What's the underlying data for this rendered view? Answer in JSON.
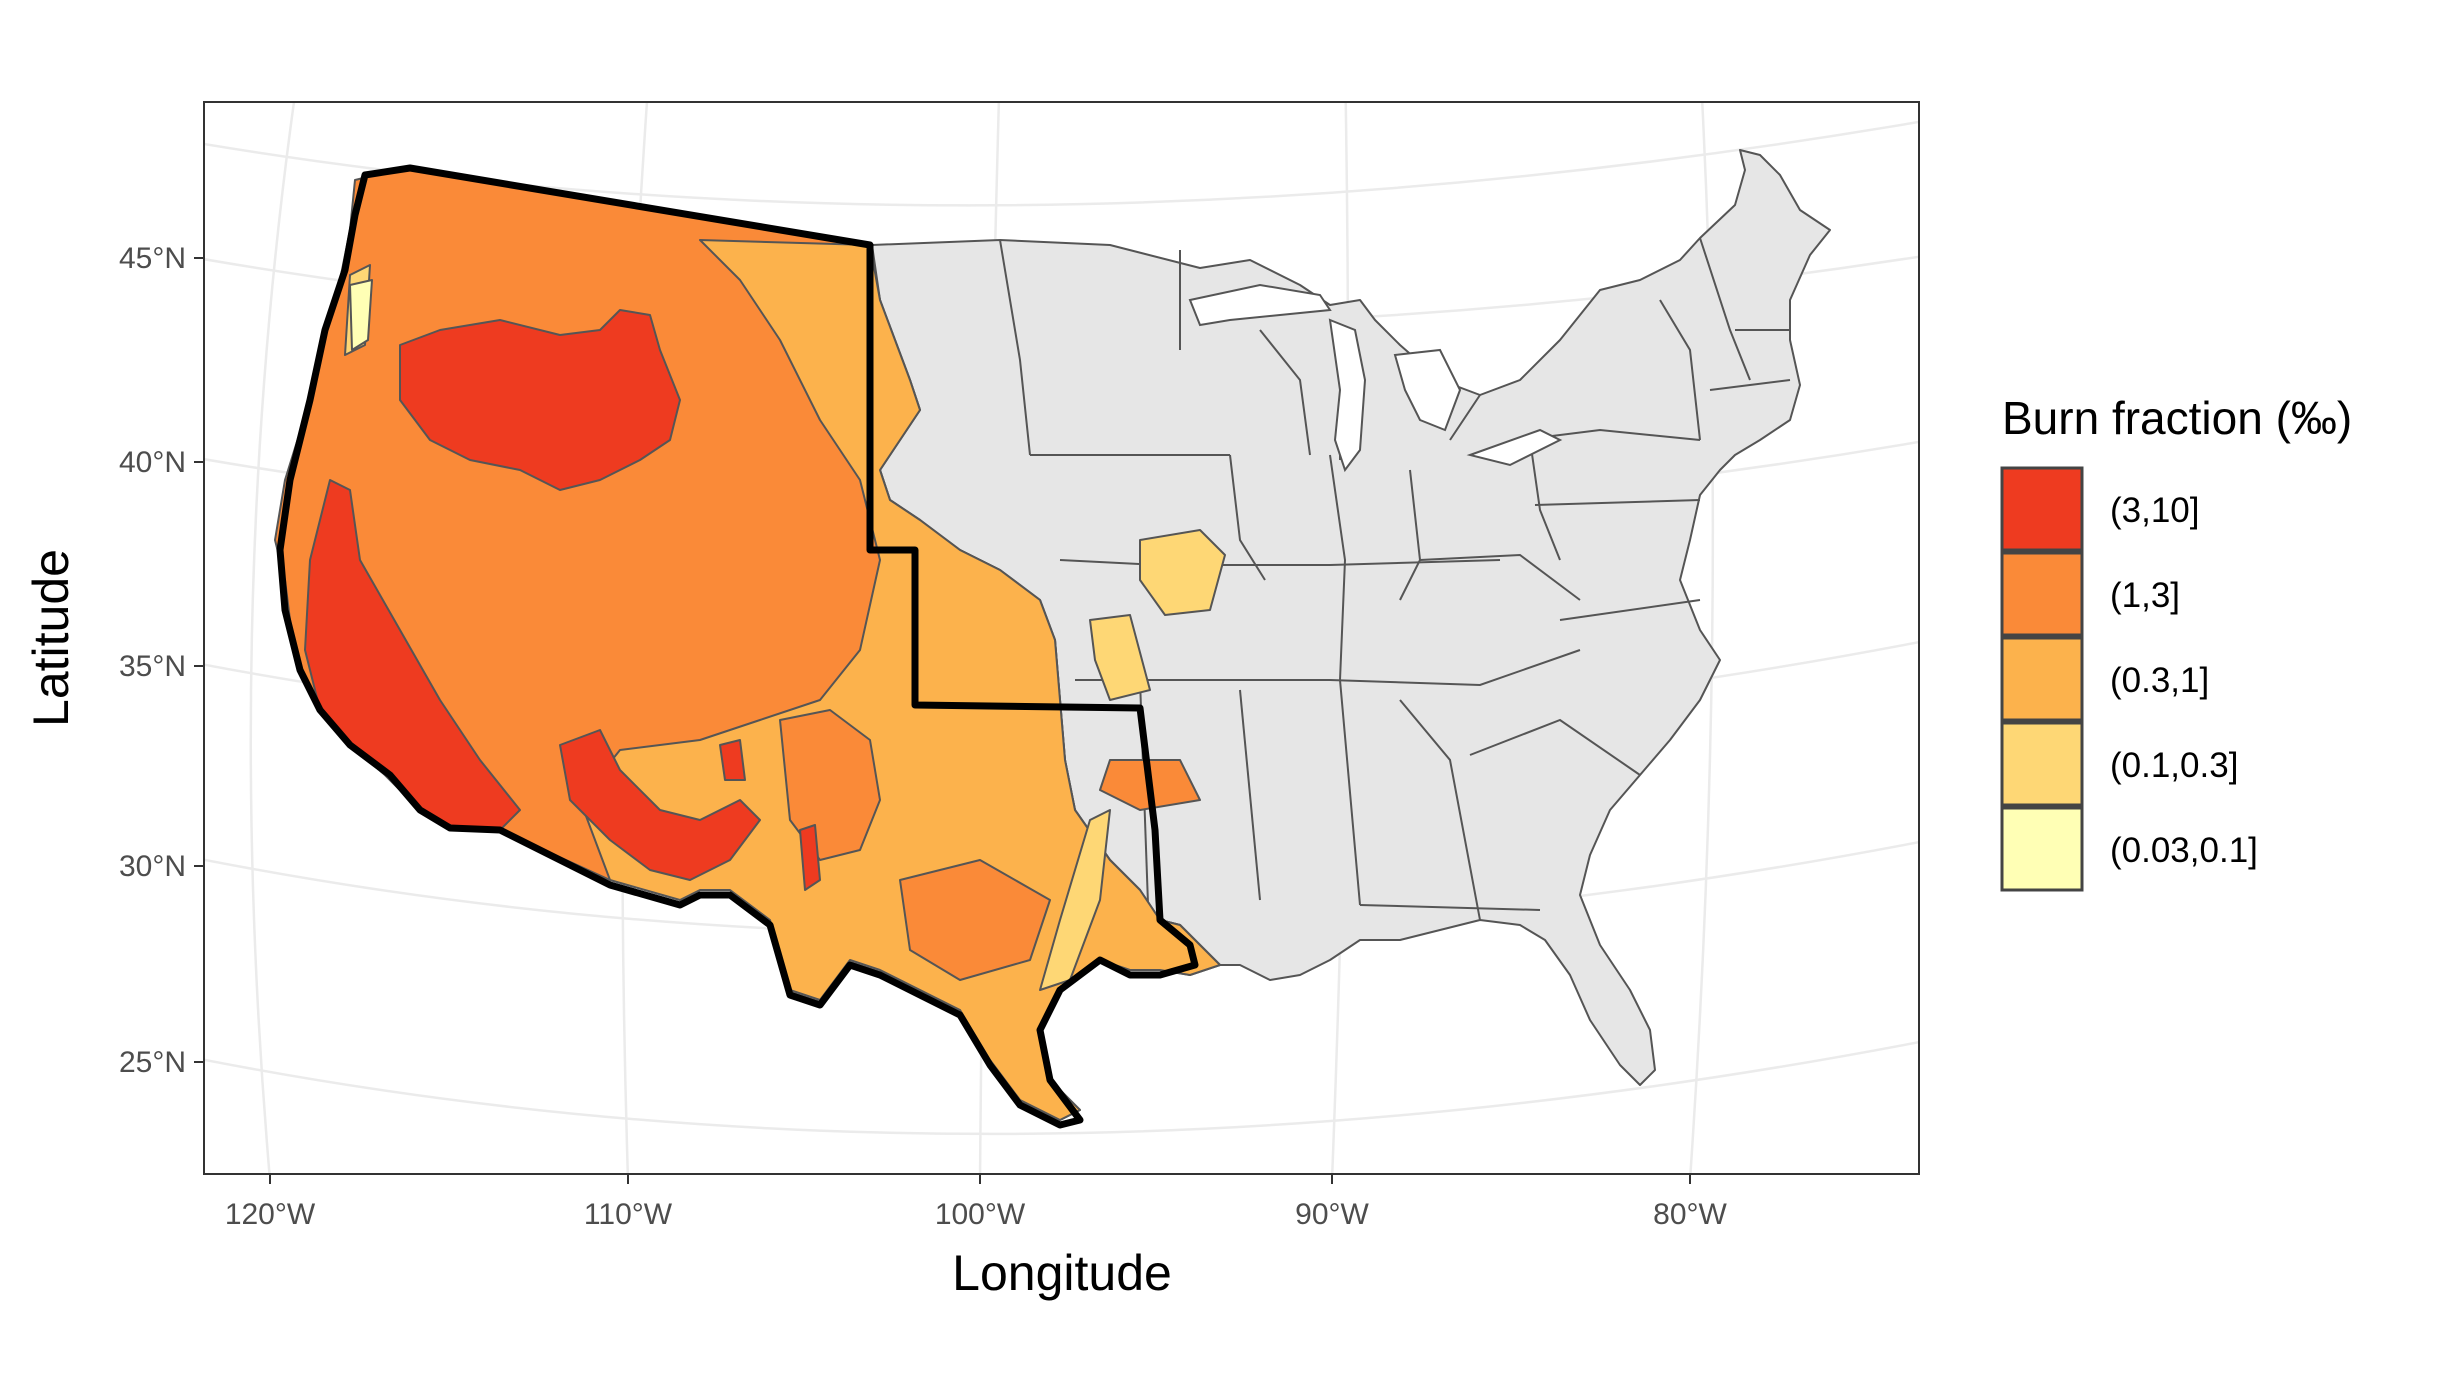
{
  "axes": {
    "xlabel": "Longitude",
    "ylabel": "Latitude",
    "x_ticks": [
      "120°W",
      "110°W",
      "100°W",
      "90°W",
      "80°W"
    ],
    "y_ticks": [
      "45°N",
      "40°N",
      "35°N",
      "30°N",
      "25°N"
    ]
  },
  "legend": {
    "title": "Burn fraction (‰)",
    "items": [
      {
        "label": "(3,10]",
        "color": "#ee3b20"
      },
      {
        "label": "(1,3]",
        "color": "#fa8a38"
      },
      {
        "label": "(0.3,1]",
        "color": "#fcb24c"
      },
      {
        "label": "(0.1,0.3]",
        "color": "#fed775"
      },
      {
        "label": "(0.03,0.1]",
        "color": "#ffffb5"
      }
    ]
  },
  "colors": {
    "eastern_states": "#e6e6e6",
    "borders": "#555555",
    "western_outline": "#000000",
    "graticule": "#ebebeb"
  }
}
